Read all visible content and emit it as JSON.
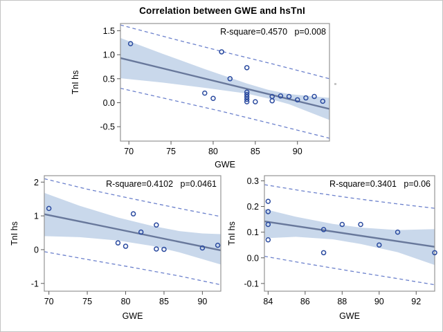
{
  "title": "Correlation between GWE and hsTnI",
  "colors": {
    "marker": "#2a4a9f",
    "fit_line": "#68789b",
    "conf_band": "#c9d8eb",
    "pred_line": "#6b80cc",
    "frame": "#949494",
    "tick": "#595959",
    "text": "#000000",
    "figure_border": "#c3c3c3"
  },
  "chart_data": [
    {
      "type": "scatter",
      "stats": {
        "r_square": "R-square=0.4570",
        "p": "p=0.008"
      },
      "xlabel": "GWE",
      "ylabel": "TnI hs",
      "xlim": [
        69.0,
        93.8
      ],
      "ylim": [
        -0.8,
        1.65
      ],
      "xticks": [
        70,
        75,
        80,
        85,
        90
      ],
      "xtick_labels": [
        "70",
        "75",
        "80",
        "85",
        "90"
      ],
      "yticks": [
        -0.5,
        0.0,
        0.5,
        1.0,
        1.5
      ],
      "ytick_labels": [
        "-0.5",
        "0.0",
        "0.5",
        "1.0",
        "1.5"
      ],
      "grid": false,
      "legend": "none",
      "points": [
        [
          70.2,
          1.23
        ],
        [
          79,
          0.2
        ],
        [
          80,
          0.09
        ],
        [
          81,
          1.06
        ],
        [
          82,
          0.5
        ],
        [
          84,
          0.73
        ],
        [
          84,
          0.22
        ],
        [
          84,
          0.17
        ],
        [
          84,
          0.12
        ],
        [
          84,
          0.07
        ],
        [
          84,
          0.02
        ],
        [
          85,
          0.02
        ],
        [
          87,
          0.13
        ],
        [
          87,
          0.04
        ],
        [
          88,
          0.14
        ],
        [
          89,
          0.13
        ],
        [
          90,
          0.06
        ],
        [
          91,
          0.1
        ],
        [
          92,
          0.13
        ],
        [
          93,
          0.03
        ]
      ],
      "fit_line": {
        "x": [
          69.0,
          93.8
        ],
        "y": [
          0.93,
          -0.13
        ]
      },
      "conf_band": {
        "x": [
          69.0,
          74.0,
          79.0,
          84.0,
          86.5,
          89.0,
          93.8
        ],
        "upper": [
          1.35,
          1.02,
          0.7,
          0.4,
          0.27,
          0.18,
          0.1
        ],
        "lower": [
          0.51,
          0.42,
          0.31,
          0.19,
          0.09,
          -0.03,
          -0.36
        ]
      },
      "pred_upper": {
        "x": [
          69.0,
          75.0,
          81.0,
          87.0,
          93.8
        ],
        "y": [
          1.62,
          1.34,
          1.07,
          0.81,
          0.5
        ]
      },
      "pred_lower": {
        "x": [
          69.0,
          75.0,
          81.0,
          87.0,
          93.8
        ],
        "y": [
          0.3,
          0.06,
          -0.18,
          -0.44,
          -0.74
        ]
      }
    },
    {
      "type": "scatter",
      "stats": {
        "r_square": "R-square=0.4102",
        "p": "p=0.0461"
      },
      "xlabel": "GWE",
      "ylabel": "TnI hs",
      "xlim": [
        69.4,
        92.4
      ],
      "ylim": [
        -1.23,
        2.19
      ],
      "xticks": [
        70,
        75,
        80,
        85,
        90
      ],
      "xtick_labels": [
        "70",
        "75",
        "80",
        "85",
        "90"
      ],
      "yticks": [
        -1,
        0,
        1,
        2
      ],
      "ytick_labels": [
        "-1",
        "0",
        "1",
        "2"
      ],
      "grid": false,
      "legend": "none",
      "points": [
        [
          70,
          1.22
        ],
        [
          79,
          0.2
        ],
        [
          80,
          0.1
        ],
        [
          81,
          1.06
        ],
        [
          82,
          0.52
        ],
        [
          84,
          0.73
        ],
        [
          84,
          0.02
        ],
        [
          85,
          0.01
        ],
        [
          90,
          0.05
        ],
        [
          92,
          0.13
        ]
      ],
      "fit_line": {
        "x": [
          69.4,
          92.4
        ],
        "y": [
          1.05,
          -0.02
        ]
      },
      "conf_band": {
        "x": [
          69.4,
          74.0,
          79.0,
          83.5,
          87.0,
          90.0,
          92.4
        ],
        "upper": [
          1.68,
          1.3,
          0.95,
          0.7,
          0.55,
          0.48,
          0.46
        ],
        "lower": [
          0.4,
          0.37,
          0.27,
          0.11,
          -0.08,
          -0.28,
          -0.44
        ]
      },
      "pred_upper": {
        "x": [
          69.4,
          75.0,
          81.0,
          87.0,
          92.4
        ],
        "y": [
          2.1,
          1.79,
          1.5,
          1.22,
          0.98
        ]
      },
      "pred_lower": {
        "x": [
          69.4,
          75.0,
          81.0,
          87.0,
          92.4
        ],
        "y": [
          -0.06,
          -0.29,
          -0.53,
          -0.78,
          -1.04
        ]
      }
    },
    {
      "type": "scatter",
      "stats": {
        "r_square": "R-square=0.3401",
        "p": "p=0.06"
      },
      "xlabel": "GWE",
      "ylabel": "TnI hs",
      "xlim": [
        83.8,
        93.0
      ],
      "ylim": [
        -0.13,
        0.32
      ],
      "xticks": [
        84,
        86,
        88,
        90,
        92
      ],
      "xtick_labels": [
        "84",
        "86",
        "88",
        "90",
        "92"
      ],
      "yticks": [
        -0.1,
        0.0,
        0.1,
        0.2,
        0.3
      ],
      "ytick_labels": [
        "-0.1",
        "0.0",
        "0.1",
        "0.2",
        "0.3"
      ],
      "grid": false,
      "legend": "none",
      "points": [
        [
          84,
          0.22
        ],
        [
          84,
          0.18
        ],
        [
          84,
          0.13
        ],
        [
          84,
          0.07
        ],
        [
          87,
          0.11
        ],
        [
          87,
          0.02
        ],
        [
          88,
          0.13
        ],
        [
          89,
          0.13
        ],
        [
          90,
          0.05
        ],
        [
          91,
          0.1
        ],
        [
          93,
          0.02
        ]
      ],
      "fit_line": {
        "x": [
          83.8,
          93.0
        ],
        "y": [
          0.142,
          0.043
        ]
      },
      "conf_band": {
        "x": [
          83.8,
          85.5,
          87.5,
          89.0,
          91.0,
          93.0
        ],
        "upper": [
          0.19,
          0.16,
          0.132,
          0.118,
          0.108,
          0.112
        ],
        "lower": [
          0.076,
          0.082,
          0.072,
          0.054,
          0.022,
          -0.028
        ]
      },
      "pred_upper": {
        "x": [
          83.8,
          86.0,
          88.5,
          91.0,
          93.0
        ],
        "y": [
          0.285,
          0.259,
          0.233,
          0.21,
          0.193
        ]
      },
      "pred_lower": {
        "x": [
          83.8,
          86.0,
          88.5,
          91.0,
          93.0
        ],
        "y": [
          0.006,
          -0.022,
          -0.052,
          -0.081,
          -0.105
        ]
      }
    }
  ]
}
